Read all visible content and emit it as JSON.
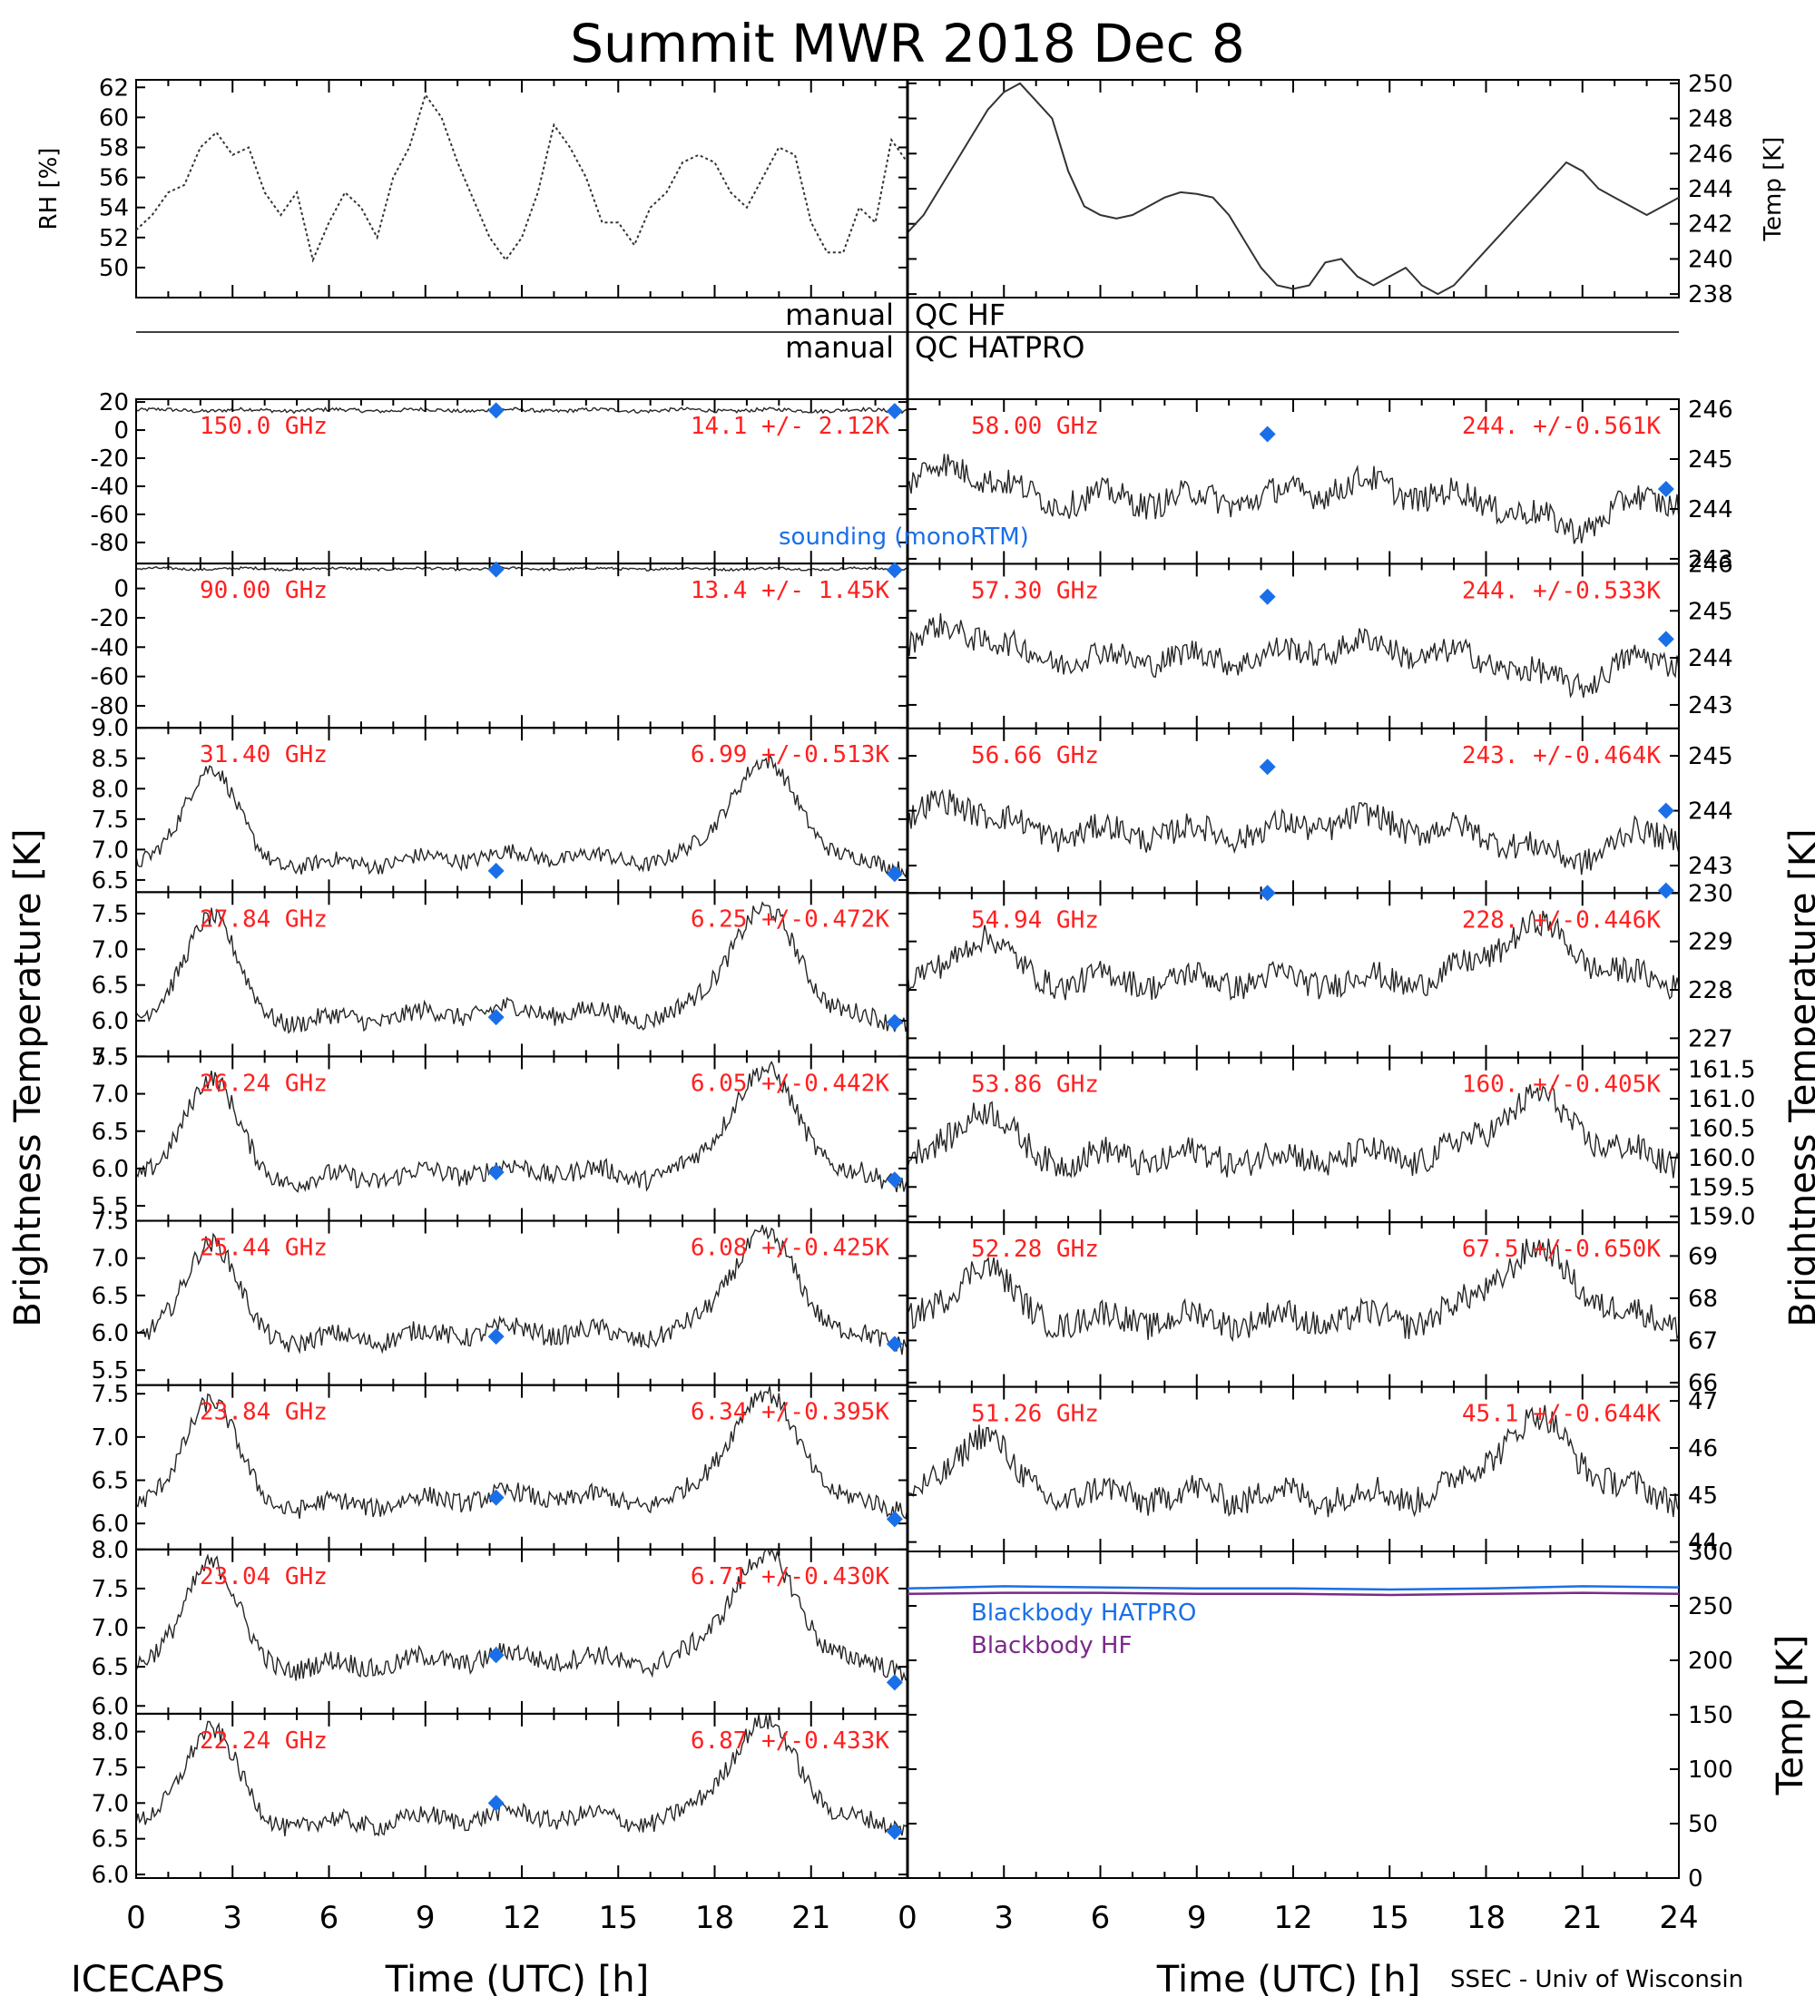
{
  "chart_data": {
    "title": "Summit MWR 2018 Dec  8",
    "footer_left": "ICECAPS",
    "footer_right": "SSEC - Univ of Wisconsin",
    "qc_labels": [
      {
        "left": "manual",
        "right": "QC HF"
      },
      {
        "left": "manual",
        "right": "QC HATPRO"
      }
    ],
    "xlabel": "Time (UTC) [h]",
    "xlim": [
      0,
      24
    ],
    "xticks": [
      0,
      3,
      6,
      9,
      12,
      15,
      18,
      21
    ],
    "xticks_right": [
      0,
      3,
      6,
      9,
      12,
      15,
      18,
      21,
      24
    ],
    "ylabel_left": "Brightness Temperature [K]",
    "ylabel_right": "Brightness Temperature [K]",
    "colors": {
      "trace": "#000000",
      "label": "#ff2020",
      "sounding": "#1a6fe8",
      "bb_hatpro": "#1a6fe8",
      "bb_hf": "#7a2a8a"
    },
    "sounding_label": "sounding (monoRTM)",
    "meteo": [
      {
        "type": "line",
        "ylabel": "RH [%]",
        "ylim": [
          48,
          62.5
        ],
        "yticks": [
          50,
          52,
          54,
          56,
          58,
          60,
          62
        ],
        "x": [
          0,
          0.5,
          1,
          1.5,
          2,
          2.5,
          3,
          3.5,
          4,
          4.5,
          5,
          5.5,
          6,
          6.5,
          7,
          7.5,
          8,
          8.5,
          9,
          9.5,
          10,
          10.5,
          11,
          11.5,
          12,
          12.5,
          13,
          13.5,
          14,
          14.5,
          15,
          15.5,
          16,
          16.5,
          17,
          17.5,
          18,
          18.5,
          19,
          19.5,
          20,
          20.5,
          21,
          21.5,
          22,
          22.5,
          23,
          23.5,
          24
        ],
        "values": [
          52.5,
          53.5,
          55,
          55.5,
          58,
          59,
          57.5,
          58,
          55,
          53.5,
          55,
          50.5,
          53,
          55,
          54,
          52,
          56,
          58,
          61.5,
          60,
          57,
          54.5,
          52,
          50.5,
          52,
          55,
          59.5,
          58,
          56,
          53,
          53,
          51.5,
          54,
          55,
          57,
          57.5,
          57,
          55,
          54,
          56,
          58,
          57.5,
          53,
          51,
          51,
          54,
          53,
          58.5,
          57
        ]
      },
      {
        "type": "line",
        "ylabel": "Temp [K]",
        "ylim": [
          237.8,
          250.2
        ],
        "yticks": [
          238,
          240,
          242,
          244,
          246,
          248,
          250
        ],
        "x": [
          0,
          0.5,
          1,
          1.5,
          2,
          2.5,
          3,
          3.5,
          4,
          4.5,
          5,
          5.5,
          6,
          6.5,
          7,
          7.5,
          8,
          8.5,
          9,
          9.5,
          10,
          10.5,
          11,
          11.5,
          12,
          12.5,
          13,
          13.5,
          14,
          14.5,
          15,
          15.5,
          16,
          16.5,
          17,
          17.5,
          18,
          18.5,
          19,
          19.5,
          20,
          20.5,
          21,
          21.5,
          22,
          22.5,
          23,
          23.5,
          24
        ],
        "values": [
          241.5,
          242.5,
          244,
          245.5,
          247,
          248.5,
          249.5,
          250,
          249,
          248,
          245,
          243,
          242.5,
          242.3,
          242.5,
          243,
          243.5,
          243.8,
          243.7,
          243.5,
          242.5,
          241,
          239.5,
          238.5,
          238.3,
          238.5,
          239.8,
          240,
          239,
          238.5,
          239,
          239.5,
          238.5,
          238,
          238.5,
          239.5,
          240.5,
          241.5,
          242.5,
          243.5,
          244.5,
          245.5,
          245,
          244,
          243.5,
          243,
          242.5,
          243,
          243.5
        ]
      }
    ],
    "panels_left": [
      {
        "freq": "150.0 GHz",
        "stat": "14.1 +/-  2.12K",
        "ylim": [
          -95,
          22
        ],
        "yticks": [
          20,
          0,
          -20,
          -40,
          -60,
          -80
        ],
        "base": 14.1,
        "std": 2.12,
        "noise": 1.2,
        "sounding": [
          {
            "x": 11.2,
            "y": 14
          },
          {
            "x": 23.6,
            "y": 13.5
          }
        ]
      },
      {
        "freq": "90.00 GHz",
        "stat": "13.4 +/-  1.45K",
        "ylim": [
          -95,
          17
        ],
        "yticks": [
          0,
          -20,
          -40,
          -60,
          -80
        ],
        "base": 13.4,
        "std": 1.45,
        "noise": 0.8,
        "sounding": [
          {
            "x": 11.2,
            "y": 13
          },
          {
            "x": 23.6,
            "y": 12.5
          }
        ]
      },
      {
        "freq": "31.40 GHz",
        "stat": "6.99 +/-0.513K",
        "ylim": [
          6.3,
          9.0
        ],
        "yticks": [
          6.5,
          7.0,
          7.5,
          8.0,
          8.5,
          9.0
        ],
        "base": 6.75,
        "std": 0.513,
        "noise": 0.12,
        "sounding": [
          {
            "x": 11.2,
            "y": 6.65
          },
          {
            "x": 23.6,
            "y": 6.6
          }
        ]
      },
      {
        "freq": "27.84 GHz",
        "stat": "6.25 +/-0.472K",
        "ylim": [
          5.5,
          7.8
        ],
        "yticks": [
          5.5,
          6.0,
          6.5,
          7.0,
          7.5
        ],
        "base": 6.0,
        "std": 0.472,
        "noise": 0.12,
        "sounding": [
          {
            "x": 11.2,
            "y": 6.05
          },
          {
            "x": 23.6,
            "y": 5.98
          }
        ]
      },
      {
        "freq": "26.24 GHz",
        "stat": "6.05 +/-0.442K",
        "ylim": [
          5.3,
          7.5
        ],
        "yticks": [
          5.5,
          6.0,
          6.5,
          7.0,
          7.5
        ],
        "base": 5.85,
        "std": 0.442,
        "noise": 0.12,
        "sounding": [
          {
            "x": 11.2,
            "y": 5.95
          },
          {
            "x": 23.6,
            "y": 5.85
          }
        ]
      },
      {
        "freq": "25.44 GHz",
        "stat": "6.08 +/-0.425K",
        "ylim": [
          5.3,
          7.5
        ],
        "yticks": [
          5.5,
          6.0,
          6.5,
          7.0,
          7.5
        ],
        "base": 5.9,
        "std": 0.425,
        "noise": 0.12,
        "sounding": [
          {
            "x": 11.2,
            "y": 5.95
          },
          {
            "x": 23.6,
            "y": 5.85
          }
        ]
      },
      {
        "freq": "23.84 GHz",
        "stat": "6.34 +/-0.395K",
        "ylim": [
          5.7,
          7.6
        ],
        "yticks": [
          6.0,
          6.5,
          7.0,
          7.5
        ],
        "base": 6.2,
        "std": 0.395,
        "noise": 0.1,
        "sounding": [
          {
            "x": 11.2,
            "y": 6.3
          },
          {
            "x": 23.6,
            "y": 6.05
          }
        ]
      },
      {
        "freq": "23.04 GHz",
        "stat": "6.71 +/-0.430K",
        "ylim": [
          5.9,
          8.0
        ],
        "yticks": [
          6.0,
          6.5,
          7.0,
          7.5,
          8.0
        ],
        "base": 6.5,
        "std": 0.43,
        "noise": 0.12,
        "sounding": [
          {
            "x": 11.2,
            "y": 6.65
          },
          {
            "x": 23.6,
            "y": 6.3
          }
        ]
      },
      {
        "freq": "22.24 GHz",
        "stat": "6.87 +/-0.433K",
        "ylim": [
          5.95,
          8.25
        ],
        "yticks": [
          6.0,
          6.5,
          7.0,
          7.5,
          8.0
        ],
        "base": 6.7,
        "std": 0.433,
        "noise": 0.12,
        "sounding": [
          {
            "x": 11.2,
            "y": 7.0
          },
          {
            "x": 23.6,
            "y": 6.6
          }
        ]
      }
    ],
    "panels_right": [
      {
        "freq": "58.00 GHz",
        "stat": "244. +/-0.561K",
        "ylim": [
          242.9,
          246.2
        ],
        "yticks": [
          243,
          244,
          245,
          246
        ],
        "base": 244.2,
        "std": 0.561,
        "noise": 0.25,
        "sounding": [
          {
            "x": 11.2,
            "y": 245.5
          },
          {
            "x": 23.6,
            "y": 244.4
          }
        ]
      },
      {
        "freq": "57.30 GHz",
        "stat": "244. +/-0.533K",
        "ylim": [
          242.5,
          246.0
        ],
        "yticks": [
          243,
          244,
          245,
          246
        ],
        "base": 244.0,
        "std": 0.533,
        "noise": 0.25,
        "sounding": [
          {
            "x": 11.2,
            "y": 245.3
          },
          {
            "x": 23.6,
            "y": 244.4
          }
        ]
      },
      {
        "freq": "56.66 GHz",
        "stat": "243. +/-0.464K",
        "ylim": [
          242.5,
          245.5
        ],
        "yticks": [
          243,
          244,
          245
        ],
        "base": 243.6,
        "std": 0.464,
        "noise": 0.22,
        "sounding": [
          {
            "x": 11.2,
            "y": 244.8
          },
          {
            "x": 23.6,
            "y": 244.0
          }
        ]
      },
      {
        "freq": "54.94 GHz",
        "stat": "228. +/-0.446K",
        "ylim": [
          226.6,
          230.0
        ],
        "yticks": [
          227,
          228,
          229,
          230
        ],
        "base": 228.2,
        "std": 0.446,
        "noise": 0.25,
        "sounding": [
          {
            "x": 11.2,
            "y": 230.0
          },
          {
            "x": 23.6,
            "y": 230.05
          }
        ]
      },
      {
        "freq": "53.86 GHz",
        "stat": "160. +/-0.405K",
        "ylim": [
          158.9,
          161.7
        ],
        "yticks": [
          159.0,
          159.5,
          160.0,
          160.5,
          161.0,
          161.5
        ],
        "base": 160.0,
        "std": 0.405,
        "noise": 0.22,
        "sounding": []
      },
      {
        "freq": "52.28 GHz",
        "stat": "67.5 +/-0.650K",
        "ylim": [
          65.9,
          69.8
        ],
        "yticks": [
          66,
          67,
          68,
          69
        ],
        "base": 67.5,
        "std": 0.65,
        "noise": 0.3,
        "sounding": []
      },
      {
        "freq": "51.26 GHz",
        "stat": "45.1 +/-0.644K",
        "ylim": [
          43.8,
          47.3
        ],
        "yticks": [
          44,
          45,
          46,
          47
        ],
        "base": 45.0,
        "std": 0.644,
        "noise": 0.28,
        "sounding": []
      }
    ],
    "blackbody": {
      "ylabel": "Temp [K]",
      "ylim": [
        0,
        300
      ],
      "yticks": [
        0,
        50,
        100,
        150,
        200,
        250,
        300
      ],
      "series": [
        {
          "name": "Blackbody HATPRO",
          "x": [
            0,
            3,
            6,
            9,
            12,
            15,
            18,
            21,
            24
          ],
          "values": [
            266,
            268,
            267,
            266,
            266,
            265,
            266,
            268,
            267
          ]
        },
        {
          "name": "Blackbody HF",
          "x": [
            0,
            3,
            6,
            9,
            12,
            15,
            18,
            21,
            24
          ],
          "values": [
            261,
            262,
            262,
            261,
            261,
            260,
            261,
            262,
            261
          ]
        }
      ]
    }
  }
}
